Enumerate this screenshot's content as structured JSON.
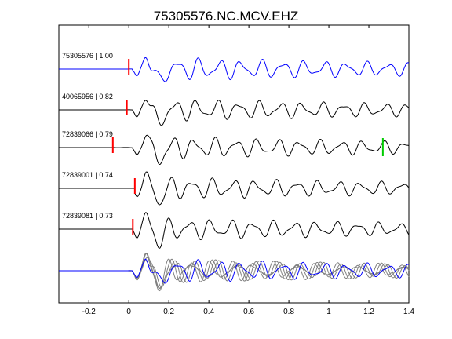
{
  "chart_data": {
    "type": "line",
    "title": "75305576.NC.MCV.EHZ",
    "xlabel": "",
    "ylabel": "",
    "xlim": [
      -0.35,
      1.4
    ],
    "xticks": [
      -0.2,
      0,
      0.2,
      0.4,
      0.6,
      0.8,
      1,
      1.2,
      1.4
    ],
    "xtick_labels": [
      "-0.2",
      "0",
      "0.2",
      "0.4",
      "0.6",
      "0.8",
      "1",
      "1.2",
      "1.4"
    ],
    "grid": false,
    "colors": {
      "reference_trace": "#0000ff",
      "trace": "#000000",
      "overlay_trace": "#808080",
      "pick_marker": "#ff0000",
      "secondary_pick": "#00cc00"
    },
    "traces": [
      {
        "id": "75305576",
        "correlation": "1.00",
        "label": "75305576 | 1.00",
        "pick_time": 0.0,
        "secondary_pick": null,
        "reference": true,
        "seed": 1
      },
      {
        "id": "40065956",
        "correlation": "0.82",
        "label": "40065956 | 0.82",
        "pick_time": -0.01,
        "secondary_pick": null,
        "reference": false,
        "seed": 2
      },
      {
        "id": "72839066",
        "correlation": "0.79",
        "label": "72839066 | 0.79",
        "pick_time": -0.08,
        "secondary_pick": 1.27,
        "reference": false,
        "seed": 3
      },
      {
        "id": "72839001",
        "correlation": "0.74",
        "label": "72839001 | 0.74",
        "pick_time": 0.03,
        "secondary_pick": null,
        "reference": false,
        "seed": 4
      },
      {
        "id": "72839081",
        "correlation": "0.73",
        "label": "72839081 | 0.73",
        "pick_time": 0.02,
        "secondary_pick": null,
        "reference": false,
        "seed": 5
      }
    ],
    "stack": {
      "description_visible": false,
      "reference_color": "#0000ff",
      "overlay_color": "#808080"
    }
  }
}
